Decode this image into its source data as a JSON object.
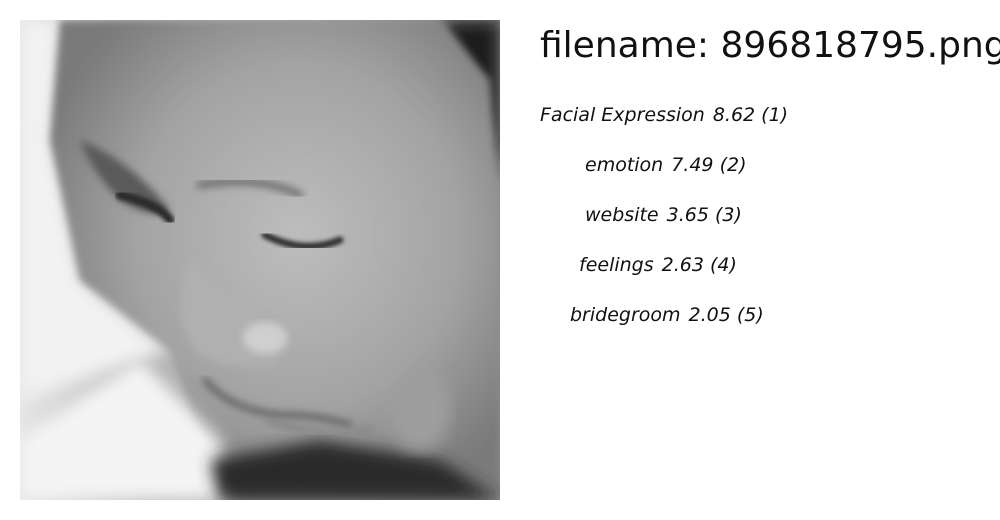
{
  "header": {
    "label": "filename:",
    "filename": "896818795.png"
  },
  "photo": {
    "subject": "grayscale close-up of a face looking down",
    "icon": "photo-icon"
  },
  "tags": [
    {
      "label": "Facial Expression",
      "score": "8.62",
      "rank": "(1)"
    },
    {
      "label": "emotion",
      "score": "7.49",
      "rank": "(2)"
    },
    {
      "label": "website",
      "score": "3.65",
      "rank": "(3)"
    },
    {
      "label": "feelings",
      "score": "2.63",
      "rank": "(4)"
    },
    {
      "label": "bridegroom",
      "score": "2.05",
      "rank": "(5)"
    }
  ]
}
